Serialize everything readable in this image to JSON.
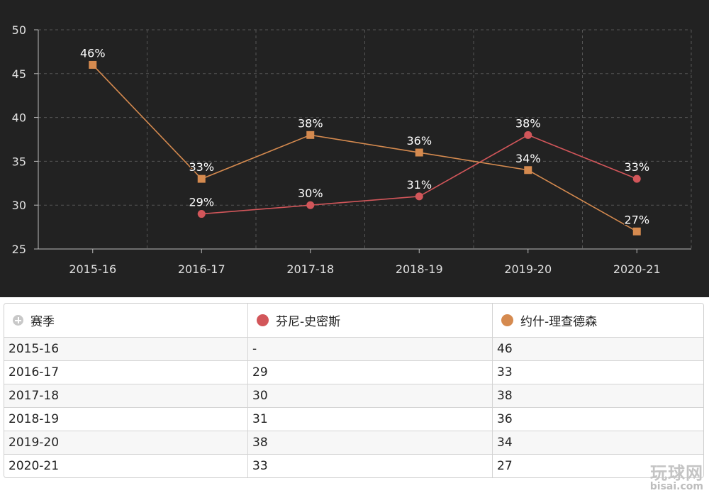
{
  "chart_data": {
    "type": "line",
    "categories": [
      "2015-16",
      "2016-17",
      "2017-18",
      "2018-19",
      "2019-20",
      "2020-21"
    ],
    "series": [
      {
        "name": "芬尼-史密斯",
        "color": "#d2565a",
        "marker": "circle",
        "values": [
          null,
          29,
          30,
          31,
          38,
          33
        ],
        "labels": [
          "",
          "29%",
          "30%",
          "31%",
          "38%",
          "33%"
        ]
      },
      {
        "name": "约什-理查德森",
        "color": "#d58a4f",
        "marker": "square",
        "values": [
          46,
          33,
          38,
          36,
          34,
          27
        ],
        "labels": [
          "46%",
          "33%",
          "38%",
          "36%",
          "34%",
          "27%"
        ]
      }
    ],
    "yticks": [
      25,
      30,
      35,
      40,
      45,
      50
    ],
    "ylim": [
      25,
      50
    ],
    "grid": true,
    "title": "",
    "xlabel": "",
    "ylabel": ""
  },
  "table": {
    "header": {
      "season": "赛季",
      "player1": "芬尼-史密斯",
      "player2": "约什-理查德森"
    },
    "rows": [
      [
        "2015-16",
        "-",
        "46"
      ],
      [
        "2016-17",
        "29",
        "33"
      ],
      [
        "2017-18",
        "30",
        "38"
      ],
      [
        "2018-19",
        "31",
        "36"
      ],
      [
        "2019-20",
        "38",
        "34"
      ],
      [
        "2020-21",
        "33",
        "27"
      ]
    ]
  },
  "watermark": {
    "mark": "玩球网",
    "site": "bisai.com"
  },
  "colors": {
    "chart_background": "#222222",
    "player1": "#d2565a",
    "player2": "#d58a4f"
  }
}
